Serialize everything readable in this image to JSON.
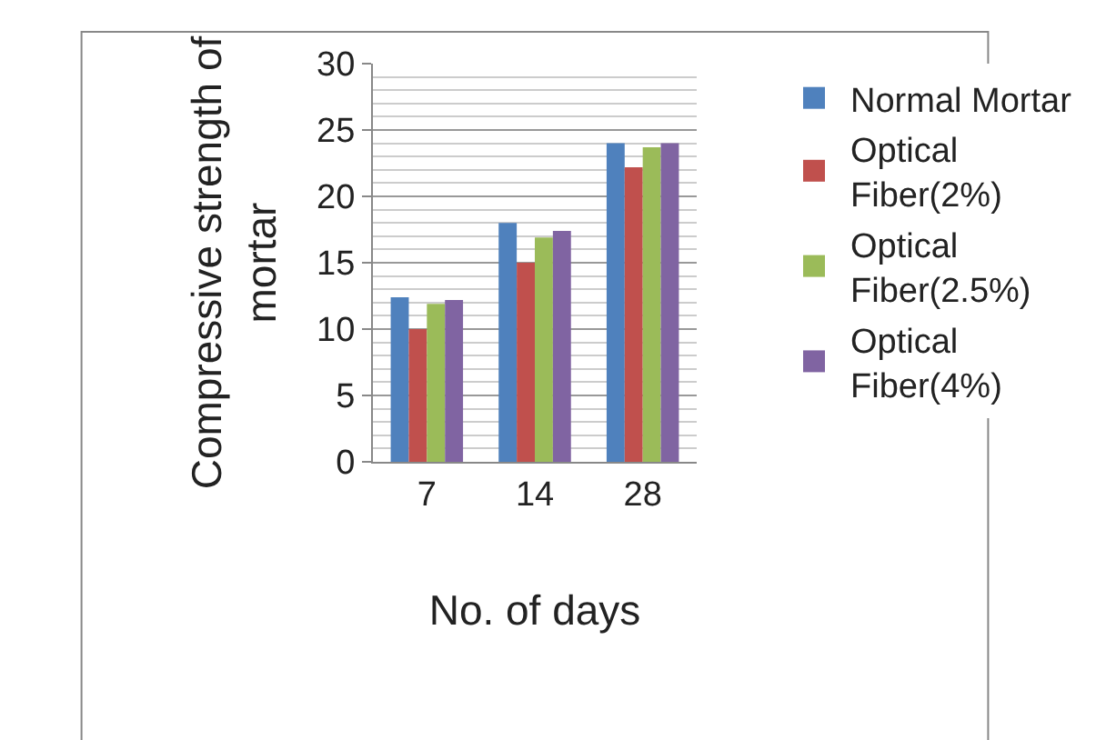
{
  "chart_data": {
    "type": "bar",
    "xlabel": "No. of days",
    "ylabel": "Compressive strength of mortar",
    "categories": [
      "7",
      "14",
      "28"
    ],
    "series": [
      {
        "name": "Normal Mortar",
        "color": "#4f81bd",
        "values": [
          12.4,
          18,
          24
        ]
      },
      {
        "name": "Optical Fiber(2%)",
        "color": "#c0504d",
        "values": [
          10,
          15,
          22.2
        ]
      },
      {
        "name": "Optical Fiber(2.5%)",
        "color": "#9bbb59",
        "values": [
          11.9,
          16.9,
          23.7
        ]
      },
      {
        "name": "Optical Fiber(4%)",
        "color": "#8064a2",
        "values": [
          12.2,
          17.4,
          24
        ]
      }
    ],
    "ylim": [
      0,
      30
    ],
    "yticks": [
      0,
      5,
      10,
      15,
      20,
      25,
      30
    ],
    "grid": "y",
    "legend": "right"
  }
}
